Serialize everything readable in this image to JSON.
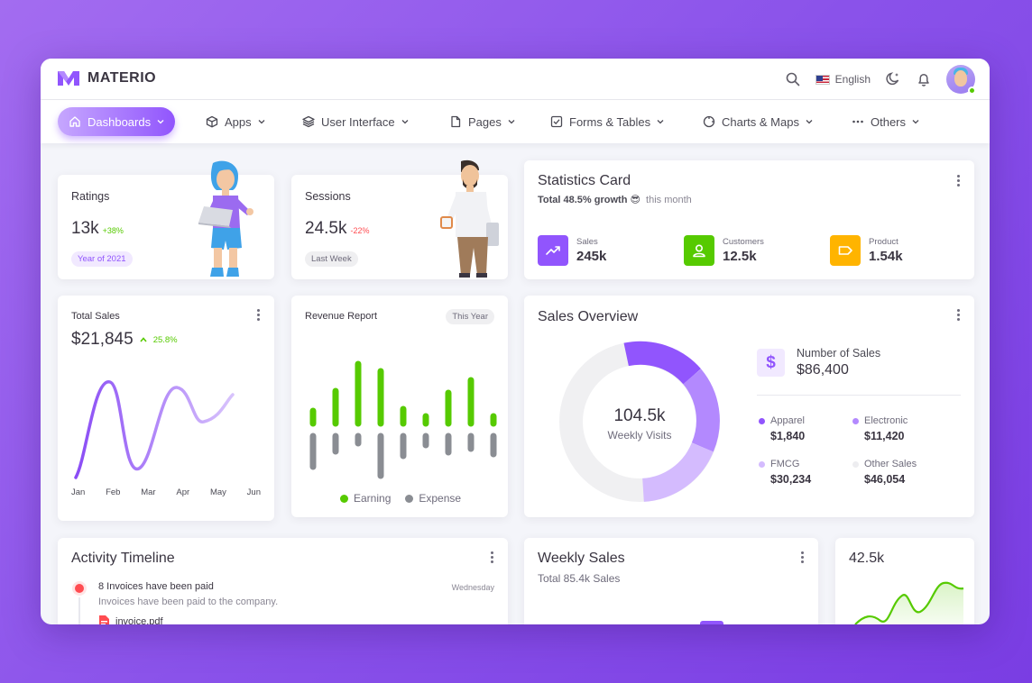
{
  "brand": {
    "name": "MATERIO",
    "accent": "#9155fd"
  },
  "header": {
    "language": "English",
    "icons": [
      "search-icon",
      "flag-us-icon",
      "moon-icon",
      "bell-icon"
    ]
  },
  "nav": {
    "items": [
      {
        "label": "Dashboards",
        "icon": "home-icon",
        "active": true
      },
      {
        "label": "Apps",
        "icon": "box-icon"
      },
      {
        "label": "User Interface",
        "icon": "layers-icon"
      },
      {
        "label": "Pages",
        "icon": "file-icon"
      },
      {
        "label": "Forms & Tables",
        "icon": "checkbox-icon"
      },
      {
        "label": "Charts & Maps",
        "icon": "chart-donut-icon"
      },
      {
        "label": "Others",
        "icon": "dots-icon"
      }
    ]
  },
  "ratings": {
    "title": "Ratings",
    "value": "13k",
    "change": "+38%",
    "badge": "Year of 2021"
  },
  "sessions": {
    "title": "Sessions",
    "value": "24.5k",
    "change": "-22%",
    "badge": "Last Week"
  },
  "statistics": {
    "title": "Statistics Card",
    "subtitle_bold": "Total 48.5% growth",
    "subtitle_emoji": "😎",
    "subtitle_rest": "this month",
    "items": [
      {
        "label": "Sales",
        "value": "245k",
        "color": "#9155fd",
        "icon": "trending-up-icon"
      },
      {
        "label": "Customers",
        "value": "12.5k",
        "color": "#56ca00",
        "icon": "user-icon"
      },
      {
        "label": "Product",
        "value": "1.54k",
        "color": "#ffb400",
        "icon": "tag-icon"
      }
    ]
  },
  "total_sales": {
    "title": "Total Sales",
    "value": "$21,845",
    "change": "25.8%",
    "months": [
      "Jan",
      "Feb",
      "Mar",
      "Apr",
      "May",
      "Jun"
    ]
  },
  "revenue": {
    "title": "Revenue Report",
    "badge": "This Year",
    "legend_earning": "Earning",
    "legend_expense": "Expense",
    "earning_color": "#56ca00",
    "expense_color": "#8a8d93"
  },
  "sales_overview": {
    "title": "Sales Overview",
    "center_value": "104.5k",
    "center_label": "Weekly Visits",
    "number_label": "Number of Sales",
    "number_value": "$86,400",
    "segments": [
      {
        "label": "Apparel",
        "value": "$1,840",
        "color": "#9155fd"
      },
      {
        "label": "Electronic",
        "value": "$11,420",
        "color": "#b389fe"
      },
      {
        "label": "FMCG",
        "value": "$30,234",
        "color": "#d4bbfe"
      },
      {
        "label": "Other Sales",
        "value": "$46,054",
        "color": "#f0f0f2"
      }
    ]
  },
  "activity": {
    "title": "Activity Timeline",
    "event_title": "8 Invoices have been paid",
    "event_time": "Wednesday",
    "event_desc": "Invoices have been paid to the company.",
    "attachment": "invoice.pdf"
  },
  "weekly_sales": {
    "title": "Weekly Sales",
    "subtitle": "Total 85.4k Sales"
  },
  "mini": {
    "value": "42.5k"
  }
}
